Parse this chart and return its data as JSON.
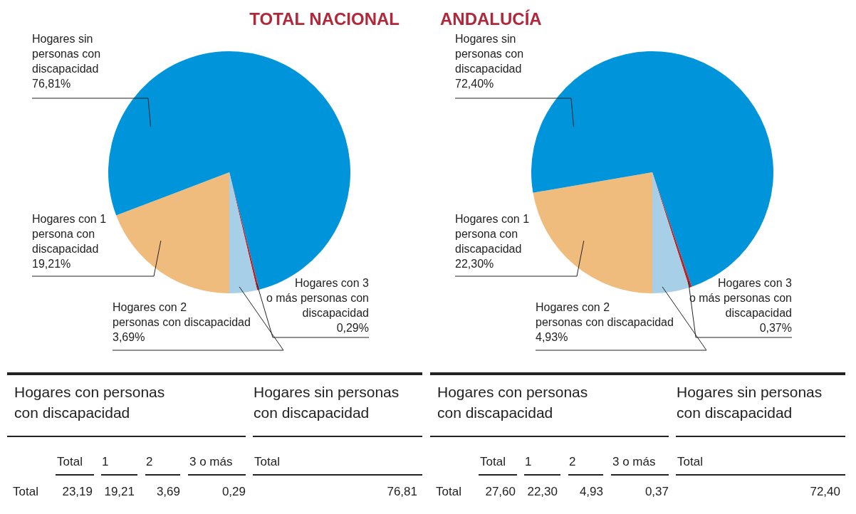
{
  "chart_data": [
    {
      "type": "pie",
      "title": "TOTAL NACIONAL",
      "categories": [
        "Hogares con 1 persona con discapacidad",
        "Hogares sin personas con discapacidad",
        "Hogares con 3 o más personas con discapacidad",
        "Hogares con 2 personas con discapacidad"
      ],
      "values": [
        19.21,
        76.81,
        0.29,
        3.69
      ],
      "colors": [
        "#f0bc7d",
        "#0095da",
        "#b5272d",
        "#a8cfe8"
      ],
      "value_labels": [
        "19,21%",
        "76,81%",
        "0,29%",
        "3,69%"
      ],
      "annotations": [
        "Hogares con personas con discapacidad",
        "Hogares sin personas con discapacidad",
        "Total",
        "1",
        "2",
        "3 o más",
        "Total",
        "Total",
        "23,19",
        "19,21",
        "3,69",
        "0,29",
        "76,81"
      ]
    },
    {
      "type": "pie",
      "title": "ANDALUCÍA",
      "categories": [
        "Hogares con 1 persona con discapacidad",
        "Hogares sin personas con discapacidad",
        "Hogares con 3 o más personas con discapacidad",
        "Hogares con 2 personas con discapacidad"
      ],
      "values": [
        22.3,
        72.4,
        0.37,
        4.93
      ],
      "colors": [
        "#f0bc7d",
        "#0095da",
        "#b5272d",
        "#a8cfe8"
      ],
      "value_labels": [
        "22,30%",
        "72,40%",
        "0,37%",
        "4,93%"
      ],
      "annotations": [
        "Hogares con personas con discapacidad",
        "Hogares sin personas con discapacidad",
        "Total",
        "1",
        "2",
        "3 o más",
        "Total",
        "Total",
        "27,60",
        "22,30",
        "4,93",
        "0,37",
        "72,40"
      ]
    }
  ]
}
